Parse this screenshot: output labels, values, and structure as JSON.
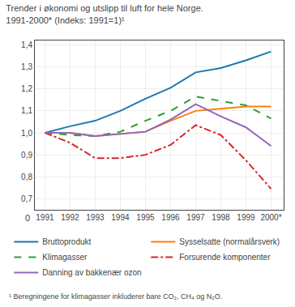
{
  "chart_data": {
    "type": "line",
    "title": "Trender i økonomi og utslipp til luft for hele Norge.",
    "subtitle": "1991-2000* (Indeks: 1991=1)¹",
    "annotations": [
      "0",
      "¹ Beregningene for klimagasser inkluderer bare CO₂, CH₄ og N₂O."
    ],
    "x": [
      1991,
      1992,
      1993,
      1994,
      1995,
      1996,
      1997,
      1998,
      1999,
      2000
    ],
    "xlim": [
      1990.6,
      2000.5
    ],
    "xticks": [
      1991,
      1992,
      1993,
      1994,
      1995,
      1996,
      1997,
      1998,
      1999,
      {
        "value": 2000,
        "label": "2000*"
      }
    ],
    "ylim": [
      0.65,
      1.42
    ],
    "yticks": [
      {
        "value": 0.7,
        "label": "0,7"
      },
      {
        "value": 0.8,
        "label": "0,8"
      },
      {
        "value": 0.9,
        "label": "0,9"
      },
      {
        "value": 1.0,
        "label": "1,0"
      },
      {
        "value": 1.1,
        "label": "1,1"
      },
      {
        "value": 1.2,
        "label": "1,2"
      },
      {
        "value": 1.3,
        "label": "1,3"
      },
      {
        "value": 1.4,
        "label": "1,4"
      }
    ],
    "grid": true,
    "legend": "bottom",
    "series": [
      {
        "name": "Bruttoprodukt",
        "line_style": "solid",
        "values": [
          1.0,
          1.03,
          1.055,
          1.1,
          1.155,
          1.205,
          1.275,
          1.295,
          1.33,
          1.37
        ]
      },
      {
        "name": "Sysselsatte (normalårsverk)",
        "line_style": "solid",
        "values": [
          1.0,
          1.0,
          0.985,
          0.995,
          1.005,
          1.055,
          1.1,
          1.11,
          1.12,
          1.12
        ]
      },
      {
        "name": "Klimagasser",
        "line_style": "dashed",
        "values": [
          1.0,
          0.99,
          0.985,
          1.005,
          1.055,
          1.1,
          1.165,
          1.145,
          1.125,
          1.065
        ]
      },
      {
        "name": "Forsurende komponenter",
        "line_style": "dashdot",
        "values": [
          1.0,
          0.955,
          0.885,
          0.885,
          0.9,
          0.945,
          1.035,
          0.99,
          0.875,
          0.745
        ]
      },
      {
        "name": "Danning av bakkenær ozon",
        "line_style": "solid",
        "values": [
          1.0,
          1.0,
          0.985,
          0.995,
          1.005,
          1.06,
          1.13,
          1.075,
          1.025,
          0.94
        ]
      }
    ]
  }
}
